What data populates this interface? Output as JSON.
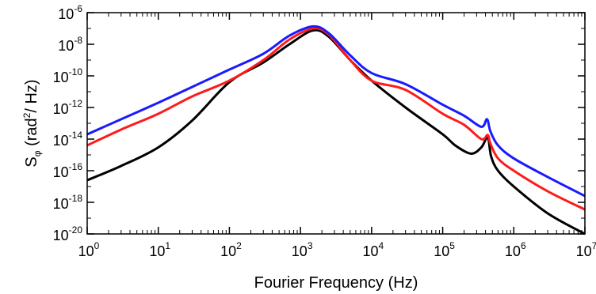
{
  "chart_data": {
    "type": "line",
    "title": "",
    "xlabel": "Fourier Frequency (Hz)",
    "ylabel": "Sφ (rad²/ Hz)",
    "ylabel_parts": {
      "s": "S",
      "sub": "φ",
      "open": " (rad",
      "sup": "2",
      "close": "/ Hz)"
    },
    "x_scale": "log",
    "y_scale": "log",
    "xlim": [
      1,
      10000000
    ],
    "ylim": [
      1e-20,
      1e-06
    ],
    "grid": false,
    "legend": "none",
    "x_ticks": [
      {
        "base": "10",
        "exp": "0",
        "value": 1
      },
      {
        "base": "10",
        "exp": "1",
        "value": 10
      },
      {
        "base": "10",
        "exp": "2",
        "value": 100
      },
      {
        "base": "10",
        "exp": "3",
        "value": 1000
      },
      {
        "base": "10",
        "exp": "4",
        "value": 10000
      },
      {
        "base": "10",
        "exp": "5",
        "value": 100000
      },
      {
        "base": "10",
        "exp": "6",
        "value": 1000000
      },
      {
        "base": "10",
        "exp": "7",
        "value": 10000000
      }
    ],
    "y_ticks": [
      {
        "base": "10",
        "exp": "-20",
        "value": 1e-20
      },
      {
        "base": "10",
        "exp": "-18",
        "value": 1e-18
      },
      {
        "base": "10",
        "exp": "-16",
        "value": 1e-16
      },
      {
        "base": "10",
        "exp": "-14",
        "value": 1e-14
      },
      {
        "base": "10",
        "exp": "-12",
        "value": 1e-12
      },
      {
        "base": "10",
        "exp": "-10",
        "value": 1e-10
      },
      {
        "base": "10",
        "exp": "-8",
        "value": 1e-08
      },
      {
        "base": "10",
        "exp": "-6",
        "value": 1e-06
      }
    ],
    "series": [
      {
        "color": "#1a1aff",
        "x": [
          1,
          3,
          10,
          30,
          100,
          300,
          700,
          1500,
          2500,
          5000,
          10000,
          30000,
          100000,
          200000,
          350000,
          420000,
          470000,
          600000,
          1000000,
          3000000,
          10000000
        ],
        "y": [
          2e-14,
          1.8e-13,
          2e-12,
          2e-11,
          2.5e-10,
          2.5e-09,
          3.5e-08,
          1.35e-07,
          5e-08,
          2e-09,
          1.5e-10,
          3e-11,
          1.5e-12,
          3e-13,
          6e-14,
          1.8e-13,
          3e-14,
          4e-15,
          6e-16,
          4e-17,
          2.5e-18
        ]
      },
      {
        "color": "#ff1a1a",
        "x": [
          1,
          3,
          10,
          30,
          100,
          300,
          700,
          1500,
          2500,
          5000,
          10000,
          30000,
          100000,
          200000,
          350000,
          430000,
          470000,
          600000,
          1000000,
          3000000,
          10000000
        ],
        "y": [
          4e-15,
          4e-14,
          4e-13,
          5e-12,
          5e-11,
          1e-09,
          2e-08,
          1e-07,
          4e-08,
          1e-09,
          5e-11,
          1.3e-11,
          4e-13,
          8e-14,
          1e-14,
          1.8e-14,
          5e-15,
          6e-16,
          1e-16,
          5e-18,
          3.5e-19
        ]
      },
      {
        "color": "#000000",
        "x": [
          1,
          3,
          10,
          30,
          100,
          300,
          700,
          1500,
          2500,
          5000,
          10000,
          30000,
          100000,
          150000,
          250000,
          350000,
          430000,
          480000,
          600000,
          1000000,
          3000000,
          10000000
        ],
        "y": [
          2.5e-17,
          2e-16,
          3e-15,
          1.5e-13,
          4e-11,
          7e-10,
          1e-08,
          7.5e-08,
          3e-08,
          1e-09,
          5e-11,
          1e-12,
          2e-14,
          4e-15,
          1.2e-15,
          3e-15,
          1.3e-14,
          8e-16,
          1e-16,
          1e-17,
          2e-19,
          1e-20
        ]
      }
    ]
  }
}
